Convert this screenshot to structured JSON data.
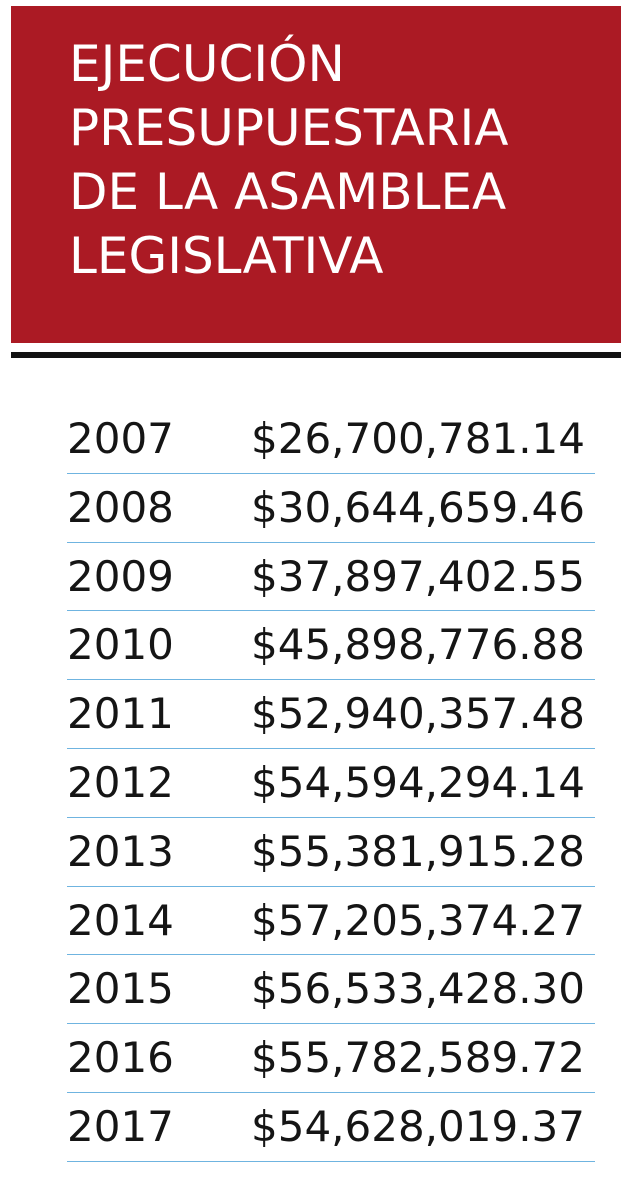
{
  "title": {
    "lines": [
      "EJECUCIÓN",
      "PRESUPUESTARIA",
      "DE LA ASAMBLEA",
      "LEGISLATIVA"
    ]
  },
  "colors": {
    "header_background": "#ab1a24",
    "header_text": "#ffffff",
    "rule": "#111111",
    "row_divider": "#6fb4e0",
    "body_text": "#151515"
  },
  "chart_data": {
    "type": "table",
    "title": "EJECUCIÓN PRESUPUESTARIA DE LA ASAMBLEA LEGISLATIVA",
    "rows": [
      {
        "year": "2007",
        "amount": "$26,700,781.14"
      },
      {
        "year": "2008",
        "amount": "$30,644,659.46"
      },
      {
        "year": "2009",
        "amount": "$37,897,402.55"
      },
      {
        "year": "2010",
        "amount": "$45,898,776.88"
      },
      {
        "year": "2011",
        "amount": "$52,940,357.48"
      },
      {
        "year": "2012",
        "amount": "$54,594,294.14"
      },
      {
        "year": "2013",
        "amount": "$55,381,915.28"
      },
      {
        "year": "2014",
        "amount": "$57,205,374.27"
      },
      {
        "year": "2015",
        "amount": "$56,533,428.30"
      },
      {
        "year": "2016",
        "amount": "$55,782,589.72"
      },
      {
        "year": "2017",
        "amount": "$54,628,019.37"
      }
    ]
  }
}
